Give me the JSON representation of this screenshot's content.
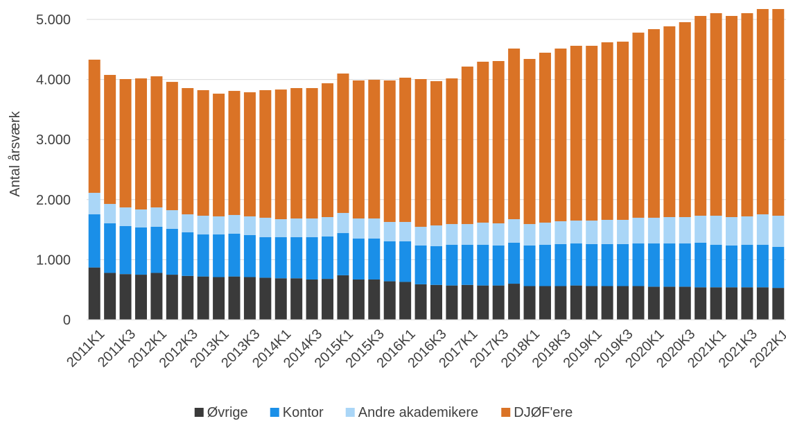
{
  "chart_data": {
    "type": "stacked_bar",
    "y_label": "Antal årsværk",
    "categories": [
      "2011K1",
      null,
      "2011K3",
      null,
      "2012K1",
      null,
      "2012K3",
      null,
      "2013K1",
      null,
      "2013K3",
      null,
      "2014K1",
      null,
      "2014K3",
      null,
      "2015K1",
      null,
      "2015K3",
      null,
      "2016K1",
      null,
      "2016K3",
      null,
      "2017K1",
      null,
      "2017K3",
      null,
      "2018K1",
      null,
      "2018K3",
      null,
      "2019K1",
      null,
      "2019K3",
      null,
      "2020K1",
      null,
      "2020K3",
      null,
      "2021K1",
      null,
      "2021K3",
      null,
      "2022K1"
    ],
    "series": [
      {
        "name": "Øvrige",
        "color": "#3a3a3a",
        "values": [
          870,
          780,
          760,
          750,
          780,
          750,
          730,
          720,
          710,
          720,
          710,
          700,
          690,
          690,
          670,
          680,
          740,
          670,
          670,
          640,
          630,
          590,
          580,
          570,
          580,
          570,
          570,
          600,
          560,
          560,
          560,
          570,
          560,
          560,
          560,
          560,
          550,
          550,
          550,
          540,
          540,
          540,
          540,
          540,
          530
        ]
      },
      {
        "name": "Kontor",
        "color": "#1a8fe8",
        "values": [
          885,
          825,
          799,
          786,
          768,
          763,
          725,
          700,
          710,
          712,
          699,
          674,
          684,
          684,
          704,
          706,
          703,
          681,
          681,
          665,
          675,
          646,
          644,
          677,
          667,
          677,
          666,
          682,
          676,
          687,
          699,
          700,
          699,
          699,
          699,
          710,
          720,
          720,
          720,
          742,
          707,
          696,
          707,
          707,
          683
        ]
      },
      {
        "name": "Andre akademikere",
        "color": "#aad6f7",
        "values": [
          358,
          323,
          311,
          300,
          322,
          311,
          300,
          312,
          301,
          312,
          312,
          324,
          300,
          312,
          312,
          323,
          335,
          335,
          335,
          323,
          323,
          311,
          346,
          346,
          346,
          370,
          369,
          392,
          357,
          370,
          381,
          381,
          392,
          404,
          404,
          428,
          428,
          439,
          439,
          450,
          485,
          473,
          474,
          508,
          519
        ]
      },
      {
        "name": "DJØF'ere",
        "color": "#da7326",
        "values": [
          2217,
          2148,
          2137,
          2182,
          2183,
          2136,
          2102,
          2090,
          2043,
          2066,
          2066,
          2124,
          2159,
          2171,
          2171,
          2228,
          2321,
          2298,
          2309,
          2356,
          2402,
          2460,
          2402,
          2425,
          2622,
          2679,
          2702,
          2841,
          2749,
          2829,
          2875,
          2910,
          2910,
          2956,
          2967,
          3082,
          3140,
          3176,
          3245,
          3326,
          3372,
          3349,
          3383,
          3418,
          3441
        ]
      }
    ],
    "ylim": [
      0,
      5200
    ],
    "yticks": [
      0,
      {
        "value": 1000,
        "label": "1.000"
      },
      {
        "value": 2000,
        "label": "2.000"
      },
      {
        "value": 3000,
        "label": "3.000"
      },
      {
        "value": 4000,
        "label": "4.000"
      },
      {
        "value": 5000,
        "label": "5.000"
      }
    ],
    "grid": true,
    "legend": "bottom"
  }
}
